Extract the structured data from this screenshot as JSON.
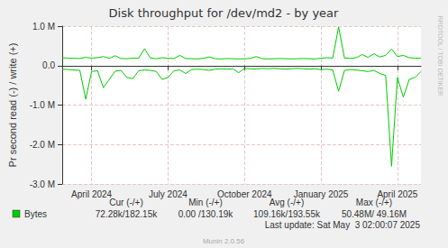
{
  "chart_data": {
    "type": "line",
    "title": "Disk throughput for /dev/md2 - by year",
    "y_label": "Pr second read (-) / write (+)",
    "categories": [
      null,
      null,
      null,
      null,
      null,
      "April 2024",
      null,
      null,
      null,
      null,
      null,
      null,
      null,
      null,
      null,
      null,
      null,
      null,
      "July 2024",
      null,
      null,
      null,
      null,
      null,
      null,
      null,
      null,
      null,
      null,
      null,
      null,
      "October 2024",
      null,
      null,
      null,
      null,
      null,
      null,
      null,
      null,
      null,
      null,
      null,
      null,
      "January 2025",
      null,
      null,
      null,
      null,
      null,
      null,
      null,
      null,
      null,
      null,
      null,
      null,
      "April 2025",
      null,
      null,
      null,
      null
    ],
    "series": [
      {
        "name": "Bytes",
        "color": "#00cc00",
        "values": [
          200000,
          190000,
          185000,
          180000,
          210000,
          190000,
          200000,
          230000,
          185000,
          250000,
          180000,
          175000,
          190000,
          185000,
          430000,
          190000,
          175000,
          200000,
          185000,
          180000,
          260000,
          180000,
          175000,
          170000,
          185000,
          220000,
          175000,
          170000,
          180000,
          175000,
          170000,
          175000,
          180000,
          230000,
          175000,
          170000,
          175000,
          180000,
          175000,
          170000,
          175000,
          180000,
          175000,
          170000,
          185000,
          200000,
          190000,
          980000,
          190000,
          185000,
          200000,
          280000,
          210000,
          300000,
          220000,
          260000,
          420000,
          230000,
          260000,
          200000,
          190000,
          185000
        ]
      },
      {
        "name": "Bytes",
        "color": "#00cc00",
        "values": [
          -90000,
          -100000,
          -110000,
          -120000,
          -850000,
          -150000,
          -130000,
          -560000,
          -350000,
          -140000,
          -120000,
          -300000,
          -330000,
          -130000,
          -110000,
          -120000,
          -150000,
          -350000,
          -300000,
          -130000,
          -110000,
          -200000,
          -100000,
          -90000,
          -100000,
          -120000,
          -90000,
          -80000,
          -90000,
          -80000,
          -180000,
          -70000,
          -80000,
          -90000,
          -70000,
          -80000,
          -70000,
          -80000,
          -90000,
          -80000,
          -70000,
          -80000,
          -90000,
          -80000,
          -100000,
          -90000,
          -110000,
          -650000,
          -120000,
          -100000,
          -110000,
          -130000,
          -150000,
          -120000,
          -200000,
          -250000,
          -2550000,
          -300000,
          -800000,
          -350000,
          -300000,
          -150000
        ]
      }
    ],
    "ylim": [
      -3000000,
      1000000
    ],
    "yticks": [
      {
        "value": -3000000,
        "label": "-3.0 M"
      },
      {
        "value": -2000000,
        "label": "-2.0 M"
      },
      {
        "value": -1000000,
        "label": "-1.0 M"
      },
      {
        "value": 0,
        "label": "0.0"
      },
      {
        "value": 1000000,
        "label": "1.0 M"
      }
    ],
    "grid": true,
    "summary": {
      "columns": [
        "Cur (-/+)",
        "Min (-/+)",
        "Avg (-/+)",
        "Max (-/+)"
      ],
      "values": [
        "72.28k/182.15k",
        "0.00 /130.19k",
        "109.16k/193.55k",
        "50.48M/ 49.16M"
      ]
    },
    "last_update": "Last update: Sat May  3 02:00:07 2025",
    "footer": "Munin 2.0.56",
    "watermark": "RRDTOOL / TOBI OETIKER"
  }
}
